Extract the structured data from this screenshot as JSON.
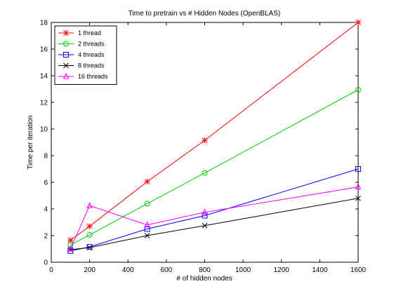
{
  "chart_data": {
    "type": "line",
    "title": "Time to pretrain vs # Hidden Nodes (OpenBLAS)",
    "xlabel": "# of hidden nodes",
    "ylabel": "Time per iteration",
    "xlim": [
      0,
      1600
    ],
    "ylim": [
      0,
      18
    ],
    "xticks": [
      0,
      200,
      400,
      600,
      800,
      1000,
      1200,
      1400,
      1600
    ],
    "yticks": [
      0,
      2,
      4,
      6,
      8,
      10,
      12,
      14,
      16,
      18
    ],
    "grid": false,
    "legend_position": "top-left",
    "series": [
      {
        "name": "1 thread",
        "color": "#ff0000",
        "marker": "asterisk",
        "x": [
          100,
          200,
          500,
          800,
          1600
        ],
        "y": [
          1.65,
          2.7,
          6.05,
          9.15,
          18.0
        ]
      },
      {
        "name": "2 threads",
        "color": "#00cc00",
        "marker": "circle",
        "x": [
          100,
          200,
          500,
          800,
          1600
        ],
        "y": [
          1.3,
          2.05,
          4.4,
          6.7,
          12.95
        ]
      },
      {
        "name": "4 threads",
        "color": "#0000ff",
        "marker": "square",
        "x": [
          100,
          200,
          500,
          800,
          1600
        ],
        "y": [
          0.85,
          1.15,
          2.5,
          3.5,
          7.0
        ]
      },
      {
        "name": "8 threads",
        "color": "#000000",
        "marker": "x",
        "x": [
          100,
          200,
          500,
          800,
          1600
        ],
        "y": [
          0.95,
          1.1,
          2.0,
          2.75,
          4.8
        ]
      },
      {
        "name": "16 threads",
        "color": "#ff00ff",
        "marker": "triangle",
        "x": [
          100,
          200,
          500,
          800,
          1600
        ],
        "y": [
          1.0,
          4.25,
          2.8,
          3.75,
          5.65
        ]
      }
    ]
  }
}
